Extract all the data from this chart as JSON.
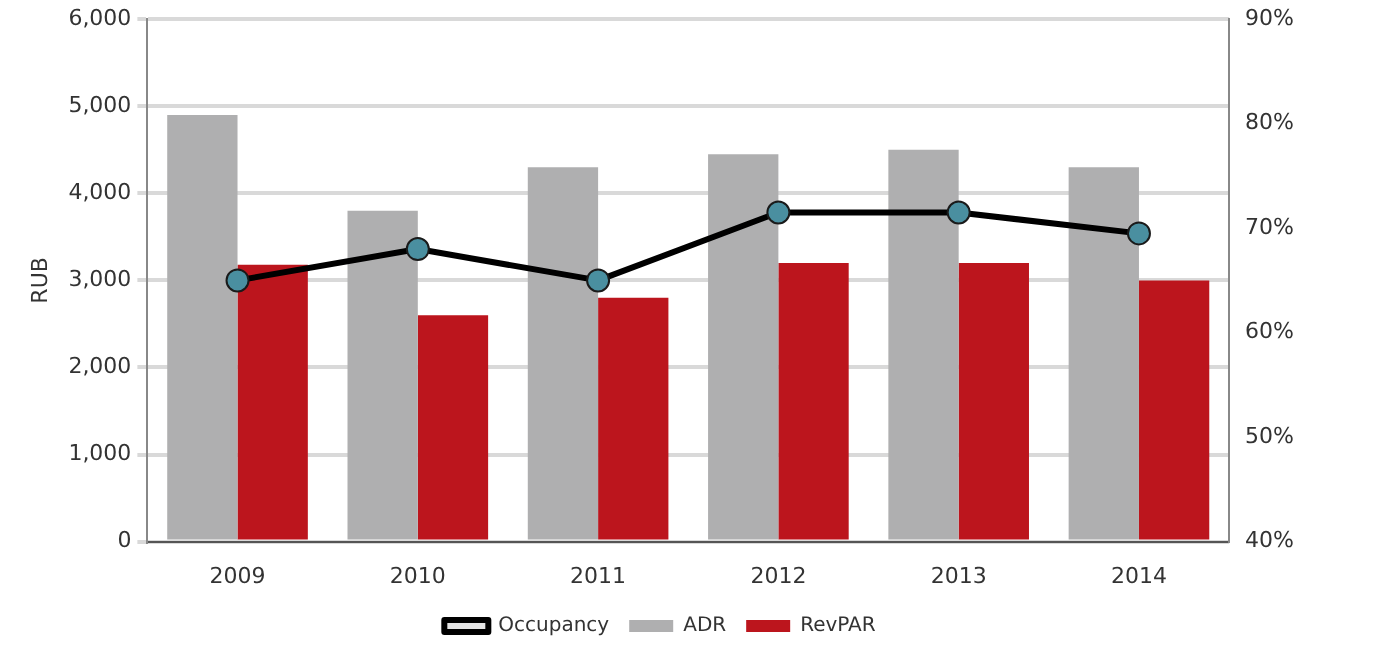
{
  "chart_data": {
    "type": "bar",
    "ylabel": "RUB",
    "categories": [
      "2009",
      "2010",
      "2011",
      "2012",
      "2013",
      "2014"
    ],
    "series": [
      {
        "name": "ADR",
        "color": "#afafb0",
        "values": [
          4900,
          3800,
          4300,
          4450,
          4500,
          4300
        ]
      },
      {
        "name": "RevPAR",
        "color": "#bc151d",
        "values": [
          3180,
          2600,
          2800,
          3200,
          3200,
          3000
        ]
      },
      {
        "name": "Occupancy",
        "type": "line",
        "axis": "y2",
        "color": "#000000",
        "marker": "circle",
        "values": [
          65,
          68,
          65,
          71.5,
          71.5,
          69.5
        ]
      }
    ],
    "ylim": [
      0,
      6000
    ],
    "yticks": [
      {
        "value": 0,
        "label": "0"
      },
      {
        "value": 1000,
        "label": "1,000"
      },
      {
        "value": 2000,
        "label": "2,000"
      },
      {
        "value": 3000,
        "label": "3,000"
      },
      {
        "value": 4000,
        "label": "4,000"
      },
      {
        "value": 5000,
        "label": "5,000"
      },
      {
        "value": 6000,
        "label": "6,000"
      }
    ],
    "y2lim": [
      40,
      90
    ],
    "y2ticks": [
      {
        "value": 40,
        "label": "40%"
      },
      {
        "value": 50,
        "label": "50%"
      },
      {
        "value": 60,
        "label": "60%"
      },
      {
        "value": 70,
        "label": "70%"
      },
      {
        "value": 80,
        "label": "80%"
      },
      {
        "value": 90,
        "label": "90%"
      }
    ],
    "grid": "y",
    "legend": "bottom"
  }
}
